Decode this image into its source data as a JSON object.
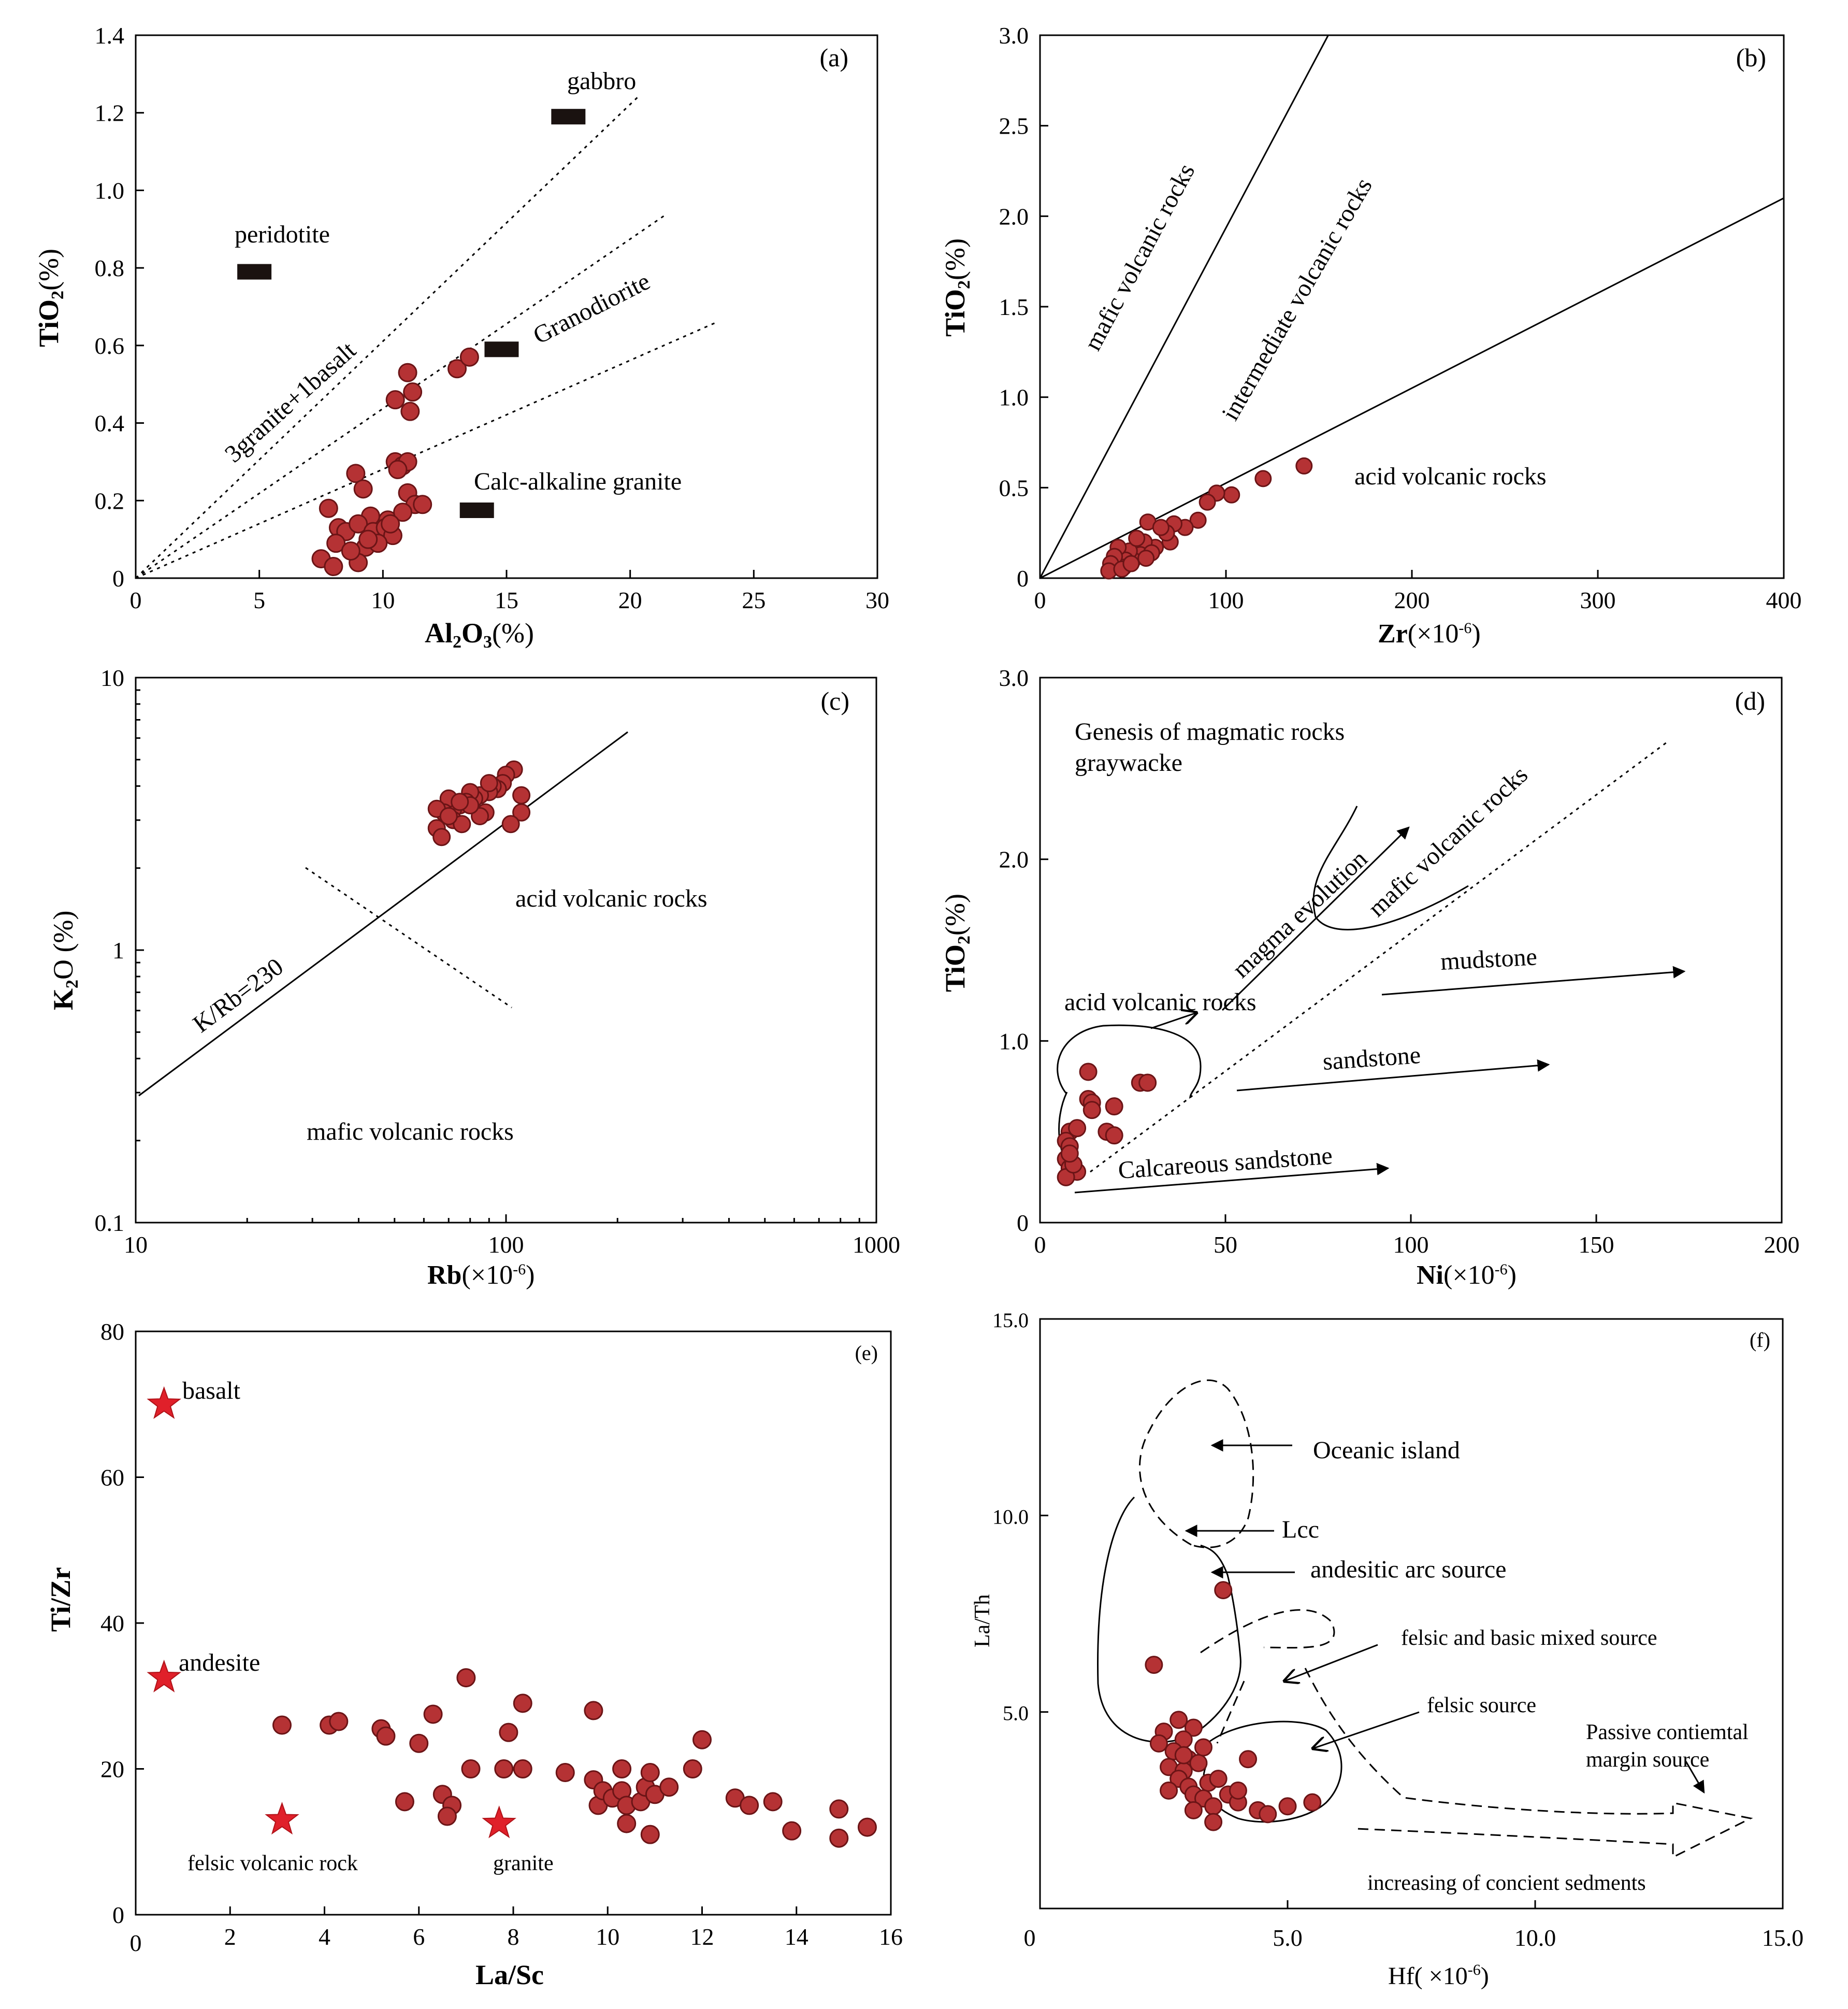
{
  "chart_data": [
    {
      "id": "a",
      "type": "scatter",
      "panel_label": "(a)",
      "xlabel_main": "Al",
      "xlabel_sub": "2",
      "xlabel_mid": "O",
      "xlabel_sub2": "3",
      "xlabel_unit": "(%)",
      "ylabel_main": "TiO",
      "ylabel_sub": "2",
      "ylabel_unit": "(%)",
      "xlim": [
        0,
        30
      ],
      "ylim": [
        0,
        1.4
      ],
      "xticks": [
        "0",
        "5",
        "10",
        "15",
        "20",
        "25",
        "30"
      ],
      "yticks": [
        "0",
        "0.2",
        "0.4",
        "0.6",
        "0.8",
        "1.0",
        "1.2",
        "1.4"
      ],
      "references": [
        {
          "name": "gabbro",
          "x": 17.5,
          "y": 1.19
        },
        {
          "name": "peridotite",
          "x": 4.8,
          "y": 0.79
        },
        {
          "name": "Granodiorite",
          "x": 14.8,
          "y": 0.59
        },
        {
          "name": "Calc-alkaline granite",
          "x": 13.8,
          "y": 0.175
        }
      ],
      "dividers": [
        {
          "label": "3granite+1basalt",
          "x2": 20.3,
          "y2": 1.24
        },
        {
          "label": "",
          "x2": 21.5,
          "y2": 0.94
        },
        {
          "label": "",
          "x2": 23.5,
          "y2": 0.66
        }
      ],
      "points": [
        [
          11.0,
          0.53
        ],
        [
          11.2,
          0.48
        ],
        [
          10.5,
          0.46
        ],
        [
          11.1,
          0.43
        ],
        [
          13.0,
          0.54
        ],
        [
          13.5,
          0.57
        ],
        [
          10.5,
          0.3
        ],
        [
          10.8,
          0.29
        ],
        [
          11.0,
          0.3
        ],
        [
          10.6,
          0.28
        ],
        [
          8.9,
          0.27
        ],
        [
          9.2,
          0.23
        ],
        [
          11.0,
          0.22
        ],
        [
          11.3,
          0.19
        ],
        [
          7.8,
          0.18
        ],
        [
          9.5,
          0.16
        ],
        [
          10.2,
          0.15
        ],
        [
          10.8,
          0.17
        ],
        [
          8.2,
          0.13
        ],
        [
          8.5,
          0.12
        ],
        [
          9.0,
          0.14
        ],
        [
          9.6,
          0.12
        ],
        [
          10.1,
          0.13
        ],
        [
          10.4,
          0.11
        ],
        [
          8.1,
          0.09
        ],
        [
          9.3,
          0.08
        ],
        [
          9.8,
          0.09
        ],
        [
          7.5,
          0.05
        ],
        [
          8.0,
          0.03
        ],
        [
          9.0,
          0.04
        ],
        [
          10.3,
          0.14
        ],
        [
          8.7,
          0.07
        ],
        [
          9.4,
          0.1
        ],
        [
          11.6,
          0.19
        ]
      ]
    },
    {
      "id": "b",
      "type": "scatter",
      "panel_label": "(b)",
      "xlabel_main": "Zr",
      "xlabel_unit": "(×10",
      "xlabel_sup": "-6",
      "xlabel_close": ")",
      "ylabel_main": "TiO",
      "ylabel_sub": "2",
      "ylabel_unit": "(%)",
      "xlim": [
        0,
        400
      ],
      "ylim": [
        0,
        3.0
      ],
      "xticks": [
        "0",
        "100",
        "200",
        "300",
        "400"
      ],
      "yticks": [
        "0",
        "0.5",
        "1.0",
        "1.5",
        "2.0",
        "2.5",
        "3.0"
      ],
      "regions": [
        "mafic volcanic rocks",
        "intermediate volcanic rocks",
        "acid  volcanic rocks"
      ],
      "boundaries": [
        {
          "x2": 155,
          "y2": 3.0
        },
        {
          "x2": 400,
          "y2": 2.1
        }
      ],
      "points": [
        [
          142,
          0.62
        ],
        [
          120,
          0.55
        ],
        [
          103,
          0.46
        ],
        [
          95,
          0.47
        ],
        [
          90,
          0.42
        ],
        [
          85,
          0.32
        ],
        [
          78,
          0.28
        ],
        [
          72,
          0.3
        ],
        [
          70,
          0.2
        ],
        [
          68,
          0.25
        ],
        [
          62,
          0.17
        ],
        [
          58,
          0.31
        ],
        [
          56,
          0.2
        ],
        [
          54,
          0.13
        ],
        [
          50,
          0.1
        ],
        [
          48,
          0.15
        ],
        [
          46,
          0.1
        ],
        [
          45,
          0.06
        ],
        [
          42,
          0.17
        ],
        [
          40,
          0.12
        ],
        [
          38,
          0.08
        ],
        [
          37,
          0.04
        ],
        [
          52,
          0.22
        ],
        [
          60,
          0.14
        ],
        [
          65,
          0.28
        ],
        [
          44,
          0.05
        ],
        [
          49,
          0.08
        ],
        [
          57,
          0.11
        ]
      ]
    },
    {
      "id": "c",
      "type": "scatter",
      "scale": "log",
      "panel_label": "(c)",
      "xlabel_main": "Rb",
      "xlabel_unit": "(×10",
      "xlabel_sup": "-6",
      "xlabel_close": ")",
      "ylabel_main": "K",
      "ylabel_sub": "2",
      "ylabel_unit": "O (%)",
      "xlim": [
        10,
        1000
      ],
      "ylim": [
        0.1,
        10
      ],
      "xticks": [
        "10",
        "100",
        "1000"
      ],
      "yticks": [
        "0.1",
        "1",
        "10"
      ],
      "regions": [
        "acid  volcanic rocks",
        "mafic volcanic rocks"
      ],
      "ratio_label": "K/Rb=230",
      "points": [
        [
          105,
          4.6
        ],
        [
          100,
          4.4
        ],
        [
          98,
          4.1
        ],
        [
          95,
          3.9
        ],
        [
          92,
          4.0
        ],
        [
          90,
          3.8
        ],
        [
          85,
          3.7
        ],
        [
          82,
          3.6
        ],
        [
          80,
          3.8
        ],
        [
          78,
          3.5
        ],
        [
          75,
          3.4
        ],
        [
          72,
          3.3
        ],
        [
          70,
          3.6
        ],
        [
          68,
          3.2
        ],
        [
          65,
          3.3
        ],
        [
          72,
          3.0
        ],
        [
          76,
          2.9
        ],
        [
          88,
          3.2
        ],
        [
          85,
          3.1
        ],
        [
          110,
          3.7
        ],
        [
          110,
          3.2
        ],
        [
          103,
          2.9
        ],
        [
          65,
          2.8
        ],
        [
          67,
          2.6
        ],
        [
          80,
          3.4
        ],
        [
          90,
          4.1
        ],
        [
          75,
          3.5
        ],
        [
          70,
          3.1
        ]
      ]
    },
    {
      "id": "d",
      "type": "scatter",
      "panel_label": "(d)",
      "xlabel_main": "Ni",
      "xlabel_unit": "(×10",
      "xlabel_sup": "-6",
      "xlabel_close": ")",
      "ylabel_main": "TiO",
      "ylabel_sub": "2",
      "ylabel_unit": "(%)",
      "xlim": [
        0,
        200
      ],
      "ylim": [
        0,
        3.0
      ],
      "xticks": [
        "0",
        "50",
        "100",
        "150",
        "200"
      ],
      "yticks": [
        "0",
        "1.0",
        "2.0",
        "3.0"
      ],
      "regions": [
        "Genesis of magmatic rocks",
        "graywacke",
        "mafic volcanic rocks",
        "magma evolution",
        "mudstone",
        "acid  volcanic rocks",
        "sandstone",
        "Calcareous sandstone"
      ],
      "points": [
        [
          13,
          0.83
        ],
        [
          13,
          0.68
        ],
        [
          14,
          0.66
        ],
        [
          20,
          0.64
        ],
        [
          14,
          0.62
        ],
        [
          18,
          0.5
        ],
        [
          20,
          0.48
        ],
        [
          27,
          0.77
        ],
        [
          29,
          0.77
        ],
        [
          8,
          0.5
        ],
        [
          10,
          0.52
        ],
        [
          7,
          0.45
        ],
        [
          8,
          0.42
        ],
        [
          7,
          0.35
        ],
        [
          8,
          0.3
        ],
        [
          10,
          0.28
        ],
        [
          7,
          0.25
        ],
        [
          9,
          0.32
        ],
        [
          8,
          0.38
        ]
      ]
    },
    {
      "id": "e",
      "type": "scatter",
      "panel_label": "(e)",
      "xlabel_main": "La/Sc",
      "ylabel_main": "Ti/Zr",
      "xlim": [
        0,
        16
      ],
      "ylim": [
        0,
        80
      ],
      "xticks": [
        "0",
        "2",
        "4",
        "6",
        "8",
        "10",
        "12",
        "14",
        "16"
      ],
      "yticks": [
        "0",
        "20",
        "40",
        "60",
        "80"
      ],
      "references": [
        {
          "name": "basalt",
          "x": 0.6,
          "y": 70
        },
        {
          "name": "andesite",
          "x": 0.6,
          "y": 32.5
        },
        {
          "name": "felsic volcanic rock",
          "x": 3.1,
          "y": 13
        },
        {
          "name": "granite",
          "x": 7.7,
          "y": 12.5
        }
      ],
      "points": [
        [
          3.1,
          26
        ],
        [
          4.1,
          26
        ],
        [
          4.3,
          26.5
        ],
        [
          5.2,
          25.5
        ],
        [
          5.3,
          24.5
        ],
        [
          6.0,
          23.5
        ],
        [
          6.3,
          27.5
        ],
        [
          5.7,
          15.5
        ],
        [
          6.5,
          16.5
        ],
        [
          6.7,
          15
        ],
        [
          6.6,
          13.5
        ],
        [
          7.0,
          32.5
        ],
        [
          7.1,
          20
        ],
        [
          7.8,
          20
        ],
        [
          7.9,
          25
        ],
        [
          8.2,
          29
        ],
        [
          8.2,
          20
        ],
        [
          9.1,
          19.5
        ],
        [
          9.7,
          28
        ],
        [
          9.7,
          18.5
        ],
        [
          9.8,
          15
        ],
        [
          9.9,
          17
        ],
        [
          10.1,
          16
        ],
        [
          10.3,
          17
        ],
        [
          10.3,
          20
        ],
        [
          10.4,
          15
        ],
        [
          10.4,
          12.5
        ],
        [
          10.7,
          15.5
        ],
        [
          10.8,
          17.5
        ],
        [
          10.9,
          19.5
        ],
        [
          10.9,
          11
        ],
        [
          11.0,
          16.5
        ],
        [
          11.3,
          17.5
        ],
        [
          11.8,
          20
        ],
        [
          12.0,
          24
        ],
        [
          12.7,
          16
        ],
        [
          13.0,
          15
        ],
        [
          13.5,
          15.5
        ],
        [
          13.9,
          11.5
        ],
        [
          14.9,
          14.5
        ],
        [
          14.9,
          10.5
        ],
        [
          15.5,
          12
        ]
      ]
    },
    {
      "id": "f",
      "type": "scatter",
      "panel_label": "(f)",
      "xlabel_main": "Hf",
      "xlabel_unit": "( ×10",
      "xlabel_sup": "-6",
      "xlabel_close": ")",
      "ylabel_main": "La/Th",
      "xlim": [
        0,
        15
      ],
      "ylim": [
        0,
        15
      ],
      "xticks": [
        "0",
        "5.0",
        "10.0",
        "15.0"
      ],
      "yticks": [
        "5.0",
        "10.0",
        "15.0"
      ],
      "regions": [
        "Oceanic island",
        "Lcc",
        "andesitic  arc  source",
        "felsic and basic mixed source",
        "felsic  source",
        "Passive contiemtal",
        "margin source",
        "increasing of  concient sedments"
      ],
      "points": [
        [
          3.7,
          8.1
        ],
        [
          2.3,
          6.2
        ],
        [
          2.8,
          4.8
        ],
        [
          2.5,
          4.5
        ],
        [
          3.1,
          4.6
        ],
        [
          2.9,
          4.3
        ],
        [
          2.4,
          4.2
        ],
        [
          2.7,
          4.0
        ],
        [
          3.0,
          3.8
        ],
        [
          2.6,
          3.6
        ],
        [
          2.9,
          3.5
        ],
        [
          3.2,
          3.7
        ],
        [
          2.8,
          3.3
        ],
        [
          3.0,
          3.1
        ],
        [
          3.4,
          3.2
        ],
        [
          3.6,
          3.3
        ],
        [
          2.6,
          3.0
        ],
        [
          3.1,
          2.9
        ],
        [
          3.3,
          2.8
        ],
        [
          3.1,
          2.5
        ],
        [
          3.5,
          2.6
        ],
        [
          3.8,
          2.9
        ],
        [
          4.0,
          2.7
        ],
        [
          4.2,
          3.8
        ],
        [
          4.0,
          3.0
        ],
        [
          3.5,
          2.2
        ],
        [
          4.4,
          2.5
        ],
        [
          4.6,
          2.4
        ],
        [
          5.0,
          2.6
        ],
        [
          5.5,
          2.7
        ],
        [
          2.9,
          3.9
        ],
        [
          3.3,
          4.1
        ]
      ]
    }
  ]
}
